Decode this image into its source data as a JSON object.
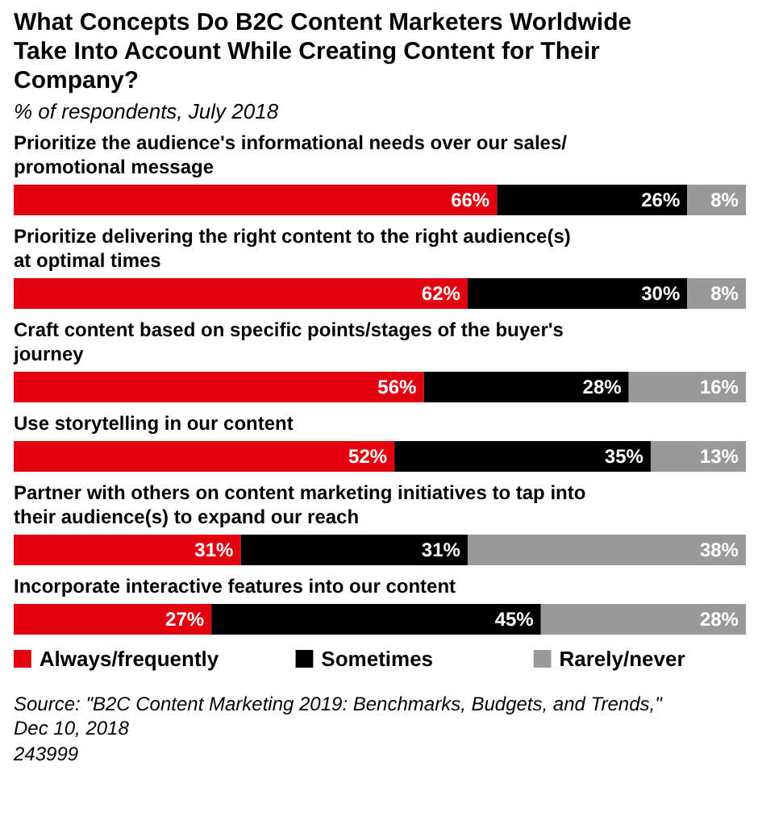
{
  "chart_data": {
    "type": "bar",
    "orientation": "horizontal",
    "stacked": true,
    "title": "What Concepts Do B2C Content Marketers Worldwide Take Into Account While Creating Content for Their Company?",
    "subtitle": "% of respondents, July 2018",
    "categories": [
      "Prioritize the audience's informational needs over our sales/promotional message",
      "Prioritize delivering the right content to the right audience(s) at optimal times",
      "Craft content based on specific points/stages of the buyer's journey",
      "Use storytelling in our content",
      "Partner with others on content marketing initiatives to tap into their audience(s) to expand our reach",
      "Incorporate interactive features into our content"
    ],
    "series": [
      {
        "name": "Always/frequently",
        "color": "#e3000f",
        "values": [
          66,
          62,
          56,
          52,
          31,
          27
        ],
        "value_labels": [
          "66%",
          "62%",
          "56%",
          "52%",
          "31%",
          "27%"
        ]
      },
      {
        "name": "Sometimes",
        "color": "#000000",
        "values": [
          26,
          30,
          28,
          35,
          31,
          45
        ],
        "value_labels": [
          "26%",
          "30%",
          "28%",
          "35%",
          "31%",
          "45%"
        ]
      },
      {
        "name": "Rarely/never",
        "color": "#999999",
        "values": [
          8,
          8,
          16,
          13,
          38,
          28
        ],
        "value_labels": [
          "8%",
          "8%",
          "16%",
          "13%",
          "38%",
          "28%"
        ]
      }
    ],
    "legend": "bottom",
    "annotations": [
      "Source: \"B2C Content Marketing 2019: Benchmarks, Budgets, and Trends,\" Dec 10, 2018",
      "243999"
    ]
  }
}
